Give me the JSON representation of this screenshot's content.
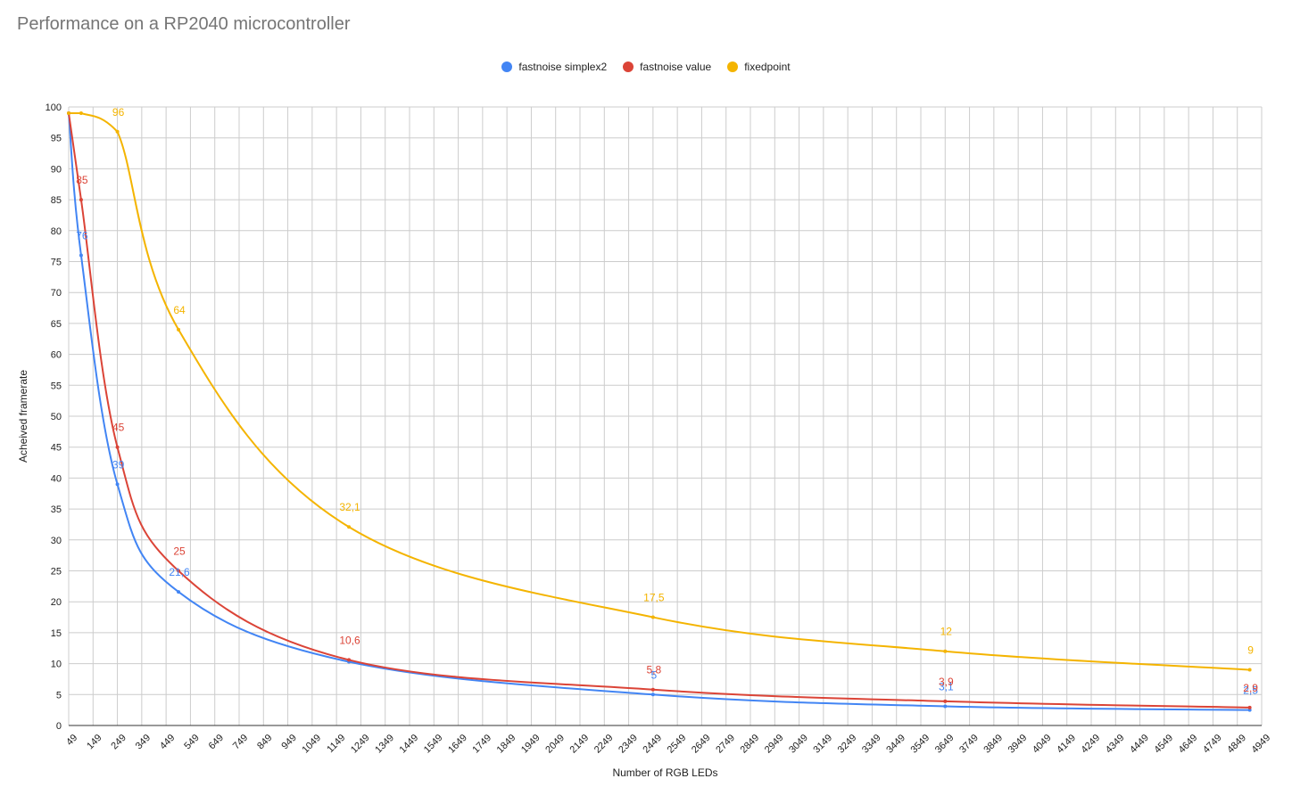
{
  "chart_data": {
    "type": "line",
    "title": "Performance on a RP2040 microcontroller",
    "xlabel": "Number of RGB LEDs",
    "ylabel": "Acheived framerate",
    "ylim": [
      0,
      100
    ],
    "y_ticks": [
      0,
      5,
      10,
      15,
      20,
      25,
      30,
      35,
      40,
      45,
      50,
      55,
      60,
      65,
      70,
      75,
      80,
      85,
      90,
      95,
      100
    ],
    "x_ticks": [
      49,
      149,
      249,
      349,
      449,
      549,
      649,
      749,
      849,
      949,
      1049,
      1149,
      1249,
      1349,
      1449,
      1549,
      1649,
      1749,
      1849,
      1949,
      2049,
      2149,
      2249,
      2349,
      2449,
      2549,
      2649,
      2749,
      2849,
      2949,
      3049,
      3149,
      3249,
      3349,
      3449,
      3549,
      3649,
      3749,
      3849,
      3949,
      4049,
      4149,
      4249,
      4349,
      4449,
      4549,
      4649,
      4749,
      4849,
      4949
    ],
    "xlim": [
      49,
      4949
    ],
    "grid": true,
    "legend_position": "top-center",
    "series": [
      {
        "name": "fastnoise simplex2",
        "color": "#4285f4",
        "x": [
          49,
          100,
          249,
          500,
          1200,
          2449,
          3649,
          4900
        ],
        "values": [
          99,
          76,
          39,
          21.6,
          10.3,
          5,
          3.1,
          2.5
        ],
        "labels": [
          "",
          "76",
          "39",
          "21,6",
          "",
          "5",
          "3,1",
          "2,5"
        ]
      },
      {
        "name": "fastnoise value",
        "color": "#db4437",
        "x": [
          49,
          100,
          249,
          500,
          1200,
          2449,
          3649,
          4900
        ],
        "values": [
          99,
          85,
          45,
          25,
          10.6,
          5.8,
          3.9,
          2.9
        ],
        "labels": [
          "",
          "85",
          "45",
          "25",
          "10,6",
          "5,8",
          "3,9",
          "2,9"
        ]
      },
      {
        "name": "fixedpoint",
        "color": "#f4b400",
        "x": [
          49,
          100,
          249,
          500,
          1200,
          2449,
          3649,
          4900
        ],
        "values": [
          99,
          99,
          96,
          64,
          32.1,
          17.5,
          12,
          9
        ],
        "labels": [
          "",
          "",
          "96",
          "64",
          "32,1",
          "17,5",
          "12",
          "9"
        ]
      }
    ]
  }
}
